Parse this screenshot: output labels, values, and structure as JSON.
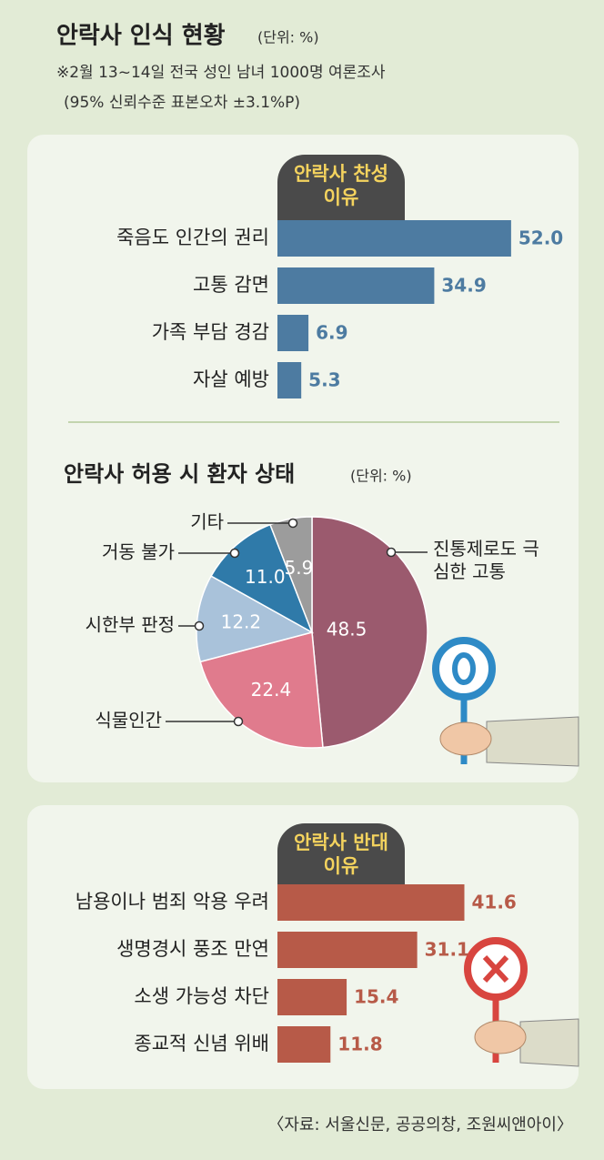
{
  "header": {
    "title": "안락사 인식 현황",
    "unit": "(단위: %)",
    "notes": [
      "※2월 13~14일 전국 성인 남녀 1000명 여론조사",
      "(95% 신뢰수준 표본오차 ±3.1%P)"
    ]
  },
  "chart_data": [
    {
      "type": "bar",
      "orientation": "horizontal",
      "title": "안락사 찬성 이유",
      "categories": [
        "죽음도 인간의 권리",
        "고통 감면",
        "가족 부담 경감",
        "자살 예방"
      ],
      "values": [
        52.0,
        34.9,
        6.9,
        5.3
      ],
      "value_labels": [
        "52.0",
        "34.9",
        "6.9",
        "5.3"
      ],
      "color": "#4d7ba1"
    },
    {
      "type": "pie",
      "title": "안락사 허용 시 환자 상태",
      "unit": "(단위: %)",
      "categories": [
        "진통제로도 극심한 고통",
        "식물인간",
        "시한부 판정",
        "거동 불가",
        "기타"
      ],
      "values": [
        48.5,
        22.4,
        12.2,
        11.0,
        5.9
      ],
      "value_labels": [
        "48.5",
        "22.4",
        "12.2",
        "11.0",
        "5.9"
      ],
      "colors": [
        "#9b5a6e",
        "#e07b8d",
        "#a9c2da",
        "#2f7aa9",
        "#9c9c9c"
      ]
    },
    {
      "type": "bar",
      "orientation": "horizontal",
      "title": "안락사 반대 이유",
      "categories": [
        "남용이나 범죄 악용 우려",
        "생명경시 풍조 만연",
        "소생 가능성 차단",
        "종교적 신념 위배"
      ],
      "values": [
        41.6,
        31.1,
        15.4,
        11.8
      ],
      "value_labels": [
        "41.6",
        "31.1",
        "15.4",
        "11.8"
      ],
      "color": "#b75a48"
    }
  ],
  "source": "〈자료: 서울신문, 공공의창, 조원씨앤아이〉"
}
